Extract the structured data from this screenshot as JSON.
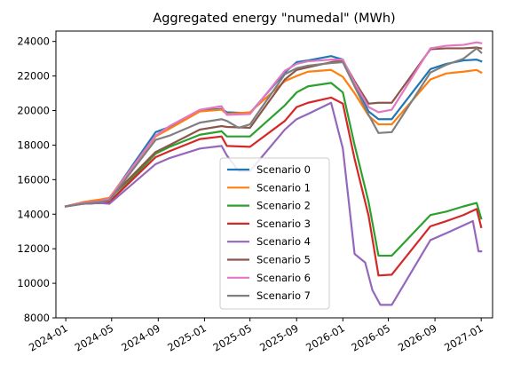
{
  "chart_data": {
    "type": "line",
    "title": "Aggregated energy \"numedal\" (MWh)",
    "xlabel": "",
    "ylabel": "",
    "xlim": [
      "2023-12-06",
      "2027-01-31"
    ],
    "ylim": [
      8000,
      24600
    ],
    "grid": false,
    "legend_position": "lower center",
    "x_ticks": [
      {
        "date": "2024-01-01",
        "label": "2024-01"
      },
      {
        "date": "2024-05-01",
        "label": "2024-05"
      },
      {
        "date": "2024-09-01",
        "label": "2024-09"
      },
      {
        "date": "2025-01-01",
        "label": "2025-01"
      },
      {
        "date": "2025-05-01",
        "label": "2025-05"
      },
      {
        "date": "2025-09-01",
        "label": "2025-09"
      },
      {
        "date": "2026-01-01",
        "label": "2026-01"
      },
      {
        "date": "2026-05-01",
        "label": "2026-05"
      },
      {
        "date": "2026-09-01",
        "label": "2026-09"
      },
      {
        "date": "2027-01-01",
        "label": "2027-01"
      }
    ],
    "y_ticks": [
      8000,
      10000,
      12000,
      14000,
      16000,
      18000,
      20000,
      22000,
      24000
    ],
    "series": [
      {
        "name": "Scenario 0",
        "color": "#1f77b4",
        "points": [
          [
            "2024-01-01",
            14450
          ],
          [
            "2024-02-15",
            14650
          ],
          [
            "2024-04-01",
            14800
          ],
          [
            "2024-04-25",
            14900
          ],
          [
            "2024-08-25",
            18750
          ],
          [
            "2024-10-01",
            19050
          ],
          [
            "2024-12-20",
            20000
          ],
          [
            "2025-02-15",
            20100
          ],
          [
            "2025-03-01",
            19900
          ],
          [
            "2025-05-01",
            19850
          ],
          [
            "2025-08-01",
            22200
          ],
          [
            "2025-09-01",
            22800
          ],
          [
            "2025-10-01",
            22900
          ],
          [
            "2025-12-01",
            23150
          ],
          [
            "2026-01-01",
            22950
          ],
          [
            "2026-02-01",
            21500
          ],
          [
            "2026-03-10",
            19950
          ],
          [
            "2026-04-05",
            19500
          ],
          [
            "2026-05-10",
            19500
          ],
          [
            "2026-08-20",
            22400
          ],
          [
            "2026-10-01",
            22700
          ],
          [
            "2026-11-15",
            22900
          ],
          [
            "2026-12-20",
            22950
          ],
          [
            "2027-01-01",
            22850
          ]
        ]
      },
      {
        "name": "Scenario 1",
        "color": "#ff7f0e",
        "points": [
          [
            "2024-01-01",
            14450
          ],
          [
            "2024-02-15",
            14700
          ],
          [
            "2024-04-01",
            14850
          ],
          [
            "2024-04-25",
            14950
          ],
          [
            "2024-08-25",
            18500
          ],
          [
            "2024-10-01",
            18950
          ],
          [
            "2024-12-20",
            19950
          ],
          [
            "2025-02-15",
            20050
          ],
          [
            "2025-03-01",
            19800
          ],
          [
            "2025-05-01",
            19900
          ],
          [
            "2025-08-01",
            21700
          ],
          [
            "2025-09-01",
            22000
          ],
          [
            "2025-10-01",
            22250
          ],
          [
            "2025-12-01",
            22350
          ],
          [
            "2026-01-01",
            21950
          ],
          [
            "2026-02-01",
            21000
          ],
          [
            "2026-03-10",
            19700
          ],
          [
            "2026-04-05",
            19200
          ],
          [
            "2026-05-10",
            19200
          ],
          [
            "2026-08-20",
            21800
          ],
          [
            "2026-10-01",
            22150
          ],
          [
            "2026-11-15",
            22250
          ],
          [
            "2026-12-20",
            22350
          ],
          [
            "2027-01-01",
            22200
          ]
        ]
      },
      {
        "name": "Scenario 2",
        "color": "#2ca02c",
        "points": [
          [
            "2024-01-01",
            14450
          ],
          [
            "2024-02-15",
            14600
          ],
          [
            "2024-04-01",
            14650
          ],
          [
            "2024-04-25",
            14700
          ],
          [
            "2024-08-25",
            17500
          ],
          [
            "2024-10-01",
            17900
          ],
          [
            "2024-12-20",
            18600
          ],
          [
            "2025-02-15",
            18800
          ],
          [
            "2025-03-01",
            18500
          ],
          [
            "2025-05-01",
            18500
          ],
          [
            "2025-08-01",
            20300
          ],
          [
            "2025-09-01",
            21050
          ],
          [
            "2025-10-01",
            21400
          ],
          [
            "2025-12-01",
            21600
          ],
          [
            "2026-01-01",
            21050
          ],
          [
            "2026-02-01",
            18000
          ],
          [
            "2026-03-10",
            14700
          ],
          [
            "2026-04-05",
            11600
          ],
          [
            "2026-05-10",
            11600
          ],
          [
            "2026-08-20",
            13950
          ],
          [
            "2026-10-01",
            14150
          ],
          [
            "2026-11-15",
            14450
          ],
          [
            "2026-12-20",
            14650
          ],
          [
            "2027-01-01",
            13750
          ]
        ]
      },
      {
        "name": "Scenario 3",
        "color": "#d62728",
        "points": [
          [
            "2024-01-01",
            14450
          ],
          [
            "2024-02-15",
            14600
          ],
          [
            "2024-04-01",
            14650
          ],
          [
            "2024-04-25",
            14700
          ],
          [
            "2024-08-25",
            17300
          ],
          [
            "2024-10-01",
            17650
          ],
          [
            "2024-12-20",
            18350
          ],
          [
            "2025-02-15",
            18500
          ],
          [
            "2025-03-01",
            17950
          ],
          [
            "2025-05-01",
            17900
          ],
          [
            "2025-08-01",
            19400
          ],
          [
            "2025-09-01",
            20200
          ],
          [
            "2025-10-01",
            20450
          ],
          [
            "2025-12-01",
            20750
          ],
          [
            "2026-01-01",
            20400
          ],
          [
            "2026-02-01",
            17200
          ],
          [
            "2026-03-10",
            13900
          ],
          [
            "2026-04-05",
            10450
          ],
          [
            "2026-05-10",
            10500
          ],
          [
            "2026-08-20",
            13300
          ],
          [
            "2026-10-01",
            13600
          ],
          [
            "2026-11-15",
            13950
          ],
          [
            "2026-12-20",
            14300
          ],
          [
            "2027-01-01",
            13250
          ]
        ]
      },
      {
        "name": "Scenario 4",
        "color": "#9467bd",
        "points": [
          [
            "2024-01-01",
            14450
          ],
          [
            "2024-02-15",
            14600
          ],
          [
            "2024-04-01",
            14650
          ],
          [
            "2024-04-25",
            14600
          ],
          [
            "2024-08-25",
            16900
          ],
          [
            "2024-10-01",
            17250
          ],
          [
            "2024-12-20",
            17800
          ],
          [
            "2025-02-15",
            17950
          ],
          [
            "2025-03-01",
            17400
          ],
          [
            "2025-04-01",
            16500
          ],
          [
            "2025-05-01",
            16500
          ],
          [
            "2025-08-01",
            18900
          ],
          [
            "2025-09-01",
            19500
          ],
          [
            "2025-10-01",
            19800
          ],
          [
            "2025-12-01",
            20450
          ],
          [
            "2026-01-01",
            17800
          ],
          [
            "2026-02-01",
            11700
          ],
          [
            "2026-03-01",
            11200
          ],
          [
            "2026-03-20",
            9600
          ],
          [
            "2026-04-10",
            8750
          ],
          [
            "2026-05-10",
            8750
          ],
          [
            "2026-08-20",
            12500
          ],
          [
            "2026-10-01",
            12900
          ],
          [
            "2026-12-10",
            13600
          ],
          [
            "2026-12-25",
            11850
          ],
          [
            "2027-01-01",
            11850
          ]
        ]
      },
      {
        "name": "Scenario 5",
        "color": "#8c564b",
        "points": [
          [
            "2024-01-01",
            14450
          ],
          [
            "2024-02-15",
            14650
          ],
          [
            "2024-04-01",
            14750
          ],
          [
            "2024-04-25",
            14900
          ],
          [
            "2024-08-25",
            17600
          ],
          [
            "2024-10-01",
            18000
          ],
          [
            "2024-12-20",
            18900
          ],
          [
            "2025-02-15",
            19100
          ],
          [
            "2025-03-01",
            19050
          ],
          [
            "2025-05-01",
            19000
          ],
          [
            "2025-08-01",
            21800
          ],
          [
            "2025-09-01",
            22350
          ],
          [
            "2025-10-01",
            22500
          ],
          [
            "2025-12-01",
            22800
          ],
          [
            "2026-01-01",
            22900
          ],
          [
            "2026-02-01",
            21700
          ],
          [
            "2026-03-10",
            20400
          ],
          [
            "2026-04-05",
            20450
          ],
          [
            "2026-05-10",
            20450
          ],
          [
            "2026-08-20",
            23550
          ],
          [
            "2026-10-01",
            23600
          ],
          [
            "2026-11-15",
            23600
          ],
          [
            "2026-12-20",
            23650
          ],
          [
            "2027-01-01",
            23600
          ]
        ]
      },
      {
        "name": "Scenario 6",
        "color": "#e377c2",
        "points": [
          [
            "2024-01-01",
            14450
          ],
          [
            "2024-02-15",
            14650
          ],
          [
            "2024-04-01",
            14750
          ],
          [
            "2024-04-25",
            14900
          ],
          [
            "2024-08-25",
            18550
          ],
          [
            "2024-10-01",
            19100
          ],
          [
            "2024-12-20",
            20050
          ],
          [
            "2025-02-15",
            20250
          ],
          [
            "2025-03-01",
            19750
          ],
          [
            "2025-05-01",
            19800
          ],
          [
            "2025-08-01",
            22300
          ],
          [
            "2025-09-01",
            22700
          ],
          [
            "2025-10-01",
            22850
          ],
          [
            "2025-12-01",
            22950
          ],
          [
            "2026-01-01",
            22950
          ],
          [
            "2026-02-01",
            21600
          ],
          [
            "2026-03-10",
            20200
          ],
          [
            "2026-04-05",
            19900
          ],
          [
            "2026-05-10",
            20050
          ],
          [
            "2026-08-20",
            23600
          ],
          [
            "2026-10-01",
            23750
          ],
          [
            "2026-11-15",
            23800
          ],
          [
            "2026-12-20",
            23950
          ],
          [
            "2027-01-01",
            23900
          ]
        ]
      },
      {
        "name": "Scenario 7",
        "color": "#7f7f7f",
        "points": [
          [
            "2024-01-01",
            14450
          ],
          [
            "2024-02-15",
            14600
          ],
          [
            "2024-04-01",
            14700
          ],
          [
            "2024-04-25",
            14800
          ],
          [
            "2024-08-25",
            18300
          ],
          [
            "2024-10-01",
            18550
          ],
          [
            "2024-12-20",
            19300
          ],
          [
            "2025-02-15",
            19500
          ],
          [
            "2025-03-01",
            19400
          ],
          [
            "2025-04-01",
            19000
          ],
          [
            "2025-05-01",
            19200
          ],
          [
            "2025-08-01",
            22100
          ],
          [
            "2025-09-01",
            22450
          ],
          [
            "2025-10-01",
            22600
          ],
          [
            "2025-12-01",
            22750
          ],
          [
            "2026-01-01",
            22800
          ],
          [
            "2026-02-01",
            21400
          ],
          [
            "2026-03-10",
            19750
          ],
          [
            "2026-04-05",
            18700
          ],
          [
            "2026-05-10",
            18750
          ],
          [
            "2026-08-20",
            22200
          ],
          [
            "2026-10-01",
            22650
          ],
          [
            "2026-11-15",
            23000
          ],
          [
            "2026-12-20",
            23600
          ],
          [
            "2027-01-01",
            23350
          ]
        ]
      }
    ]
  }
}
